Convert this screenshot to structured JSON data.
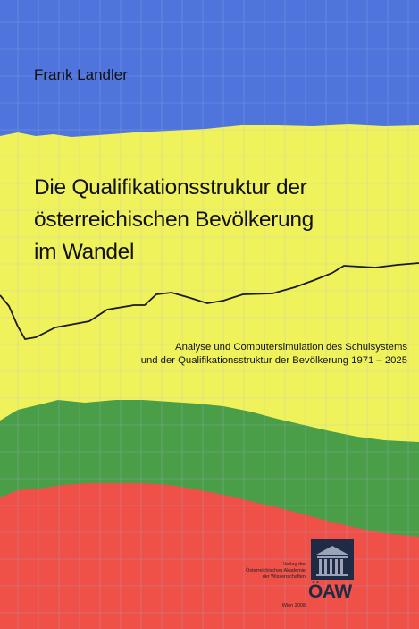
{
  "book": {
    "author": "Frank Landler",
    "title_lines": [
      "Die Qualifikationsstruktur der",
      "österreichischen Bevölkerung",
      "im Wandel"
    ],
    "subtitle_lines": [
      "Analyse und Computersimulation des Schulsystems",
      "und der Qualifikationsstruktur der Bevölkerung 1971 – 2025"
    ],
    "publisher_lines": [
      "Verlag der",
      "Österreichischen Akademie",
      "der Wissenschaften"
    ],
    "place_year": "Wien 2008",
    "logo_text": "ÖAW"
  },
  "colors": {
    "blue": "#4f74dc",
    "yellow": "#f0f25c",
    "green": "#4b9e48",
    "red": "#ef5048",
    "grid": "#a7b8e8",
    "line": "#1a1a1a",
    "logo": "#1f2a44"
  },
  "background_chart": {
    "type": "area",
    "grid": true,
    "bands": [
      "blue",
      "yellow",
      "green",
      "red"
    ]
  }
}
